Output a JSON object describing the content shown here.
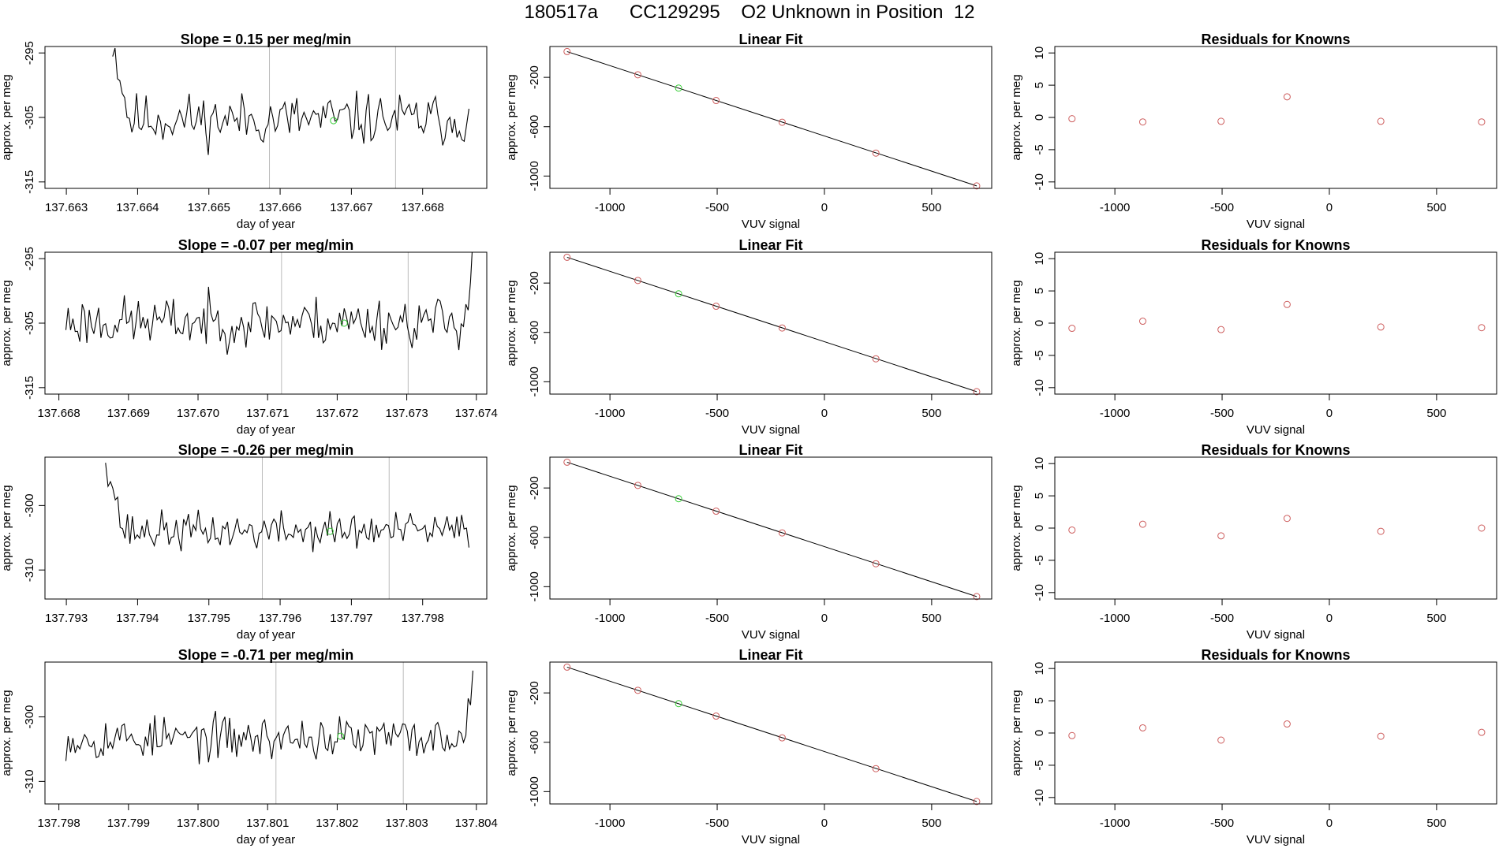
{
  "title": "180517a      CC129295    O2 Unknown in Position  12",
  "colors": {
    "line": "#000000",
    "known_point": "#cd5c5c",
    "unknown_point": "#33cc33",
    "ref_line": "#bbbbbb"
  },
  "chart_data": [
    {
      "type": "line",
      "panel": "time-series-1",
      "title": "Slope =  0.15  per meg/min",
      "xlabel": "day of year",
      "ylabel": "approx. per meg",
      "xlim": [
        137.6627,
        137.6689
      ],
      "ylim": [
        -316,
        -294
      ],
      "x_ticks": [
        137.663,
        137.664,
        137.665,
        137.666,
        137.667,
        137.668
      ],
      "x_tick_labels": [
        "137.663",
        "137.664",
        "137.665",
        "137.666",
        "137.667",
        "137.668"
      ],
      "y_ticks": [
        -295,
        -305,
        -315
      ],
      "y_tick_labels": [
        "-295",
        "-305",
        "-315"
      ],
      "vlines": [
        137.66585,
        137.66762
      ],
      "trace_start": 137.66365,
      "trace_end": 137.66865,
      "n_points": 150,
      "trace_base": -305.3,
      "trace_noise": 3.1,
      "spike_start": -293,
      "spike_len": 0.00023,
      "spike_end": null,
      "unknown_point": {
        "x": 137.66675,
        "y": -305.5
      },
      "seed": 11
    },
    {
      "type": "scatter",
      "panel": "linear-fit-1",
      "title": "Linear Fit",
      "xlabel": "VUV signal",
      "ylabel": "approx. per meg",
      "xlim": [
        -1280,
        780
      ],
      "ylim": [
        -1100,
        50
      ],
      "x_ticks": [
        -1000,
        -500,
        0,
        500
      ],
      "x_tick_labels": [
        "-1000",
        "-500",
        "0",
        "500"
      ],
      "y_ticks": [
        -200,
        -600,
        -1000
      ],
      "y_tick_labels": [
        "-200",
        "-600",
        "-1000"
      ],
      "fit_line": {
        "x": [
          -1200,
          710
        ],
        "y": [
          9,
          -1080
        ]
      },
      "knowns": {
        "x": [
          -1200,
          -870,
          -505,
          -197,
          240,
          710
        ],
        "y": [
          9,
          -179,
          -388,
          -564,
          -814,
          -1080
        ]
      },
      "unknown": {
        "x": -680,
        "y": -287
      }
    },
    {
      "type": "scatter",
      "panel": "residuals-1",
      "title": "Residuals for Knowns",
      "xlabel": "VUV signal",
      "ylabel": "approx. per meg",
      "xlim": [
        -1280,
        780
      ],
      "ylim": [
        -11,
        11
      ],
      "x_ticks": [
        -1000,
        -500,
        0,
        500
      ],
      "x_tick_labels": [
        "-1000",
        "-500",
        "0",
        "500"
      ],
      "y_ticks": [
        10,
        5,
        0,
        -5,
        -10
      ],
      "y_tick_labels": [
        "10",
        "5",
        "0",
        "-5",
        "-10"
      ],
      "residuals": {
        "x": [
          -1200,
          -870,
          -505,
          -197,
          240,
          710
        ],
        "y": [
          -0.2,
          -0.7,
          -0.6,
          3.2,
          -0.6,
          -0.7
        ]
      }
    },
    {
      "type": "line",
      "panel": "time-series-2",
      "title": "Slope =  -0.07  per meg/min",
      "xlabel": "day of year",
      "ylabel": "approx. per meg",
      "xlim": [
        137.6678,
        137.67415
      ],
      "ylim": [
        -316,
        -294
      ],
      "x_ticks": [
        137.668,
        137.669,
        137.67,
        137.671,
        137.672,
        137.673,
        137.674
      ],
      "x_tick_labels": [
        "137.668",
        "137.669",
        "137.670",
        "137.671",
        "137.672",
        "137.673",
        "137.674"
      ],
      "y_ticks": [
        -295,
        -305,
        -315
      ],
      "y_tick_labels": [
        "-295",
        "-305",
        "-315"
      ],
      "vlines": [
        137.6712,
        137.67302
      ],
      "trace_start": 137.6681,
      "trace_end": 137.67395,
      "n_points": 175,
      "trace_base": -304.8,
      "trace_noise": 3.0,
      "spike_start": null,
      "spike_len": 0.00018,
      "spike_end": -293,
      "unknown_point": {
        "x": 137.6721,
        "y": -305.0
      },
      "seed": 23
    },
    {
      "type": "scatter",
      "panel": "linear-fit-2",
      "title": "Linear Fit",
      "xlabel": "VUV signal",
      "ylabel": "approx. per meg",
      "xlim": [
        -1280,
        780
      ],
      "ylim": [
        -1100,
        50
      ],
      "x_ticks": [
        -1000,
        -500,
        0,
        500
      ],
      "x_tick_labels": [
        "-1000",
        "-500",
        "0",
        "500"
      ],
      "y_ticks": [
        -200,
        -600,
        -1000
      ],
      "y_tick_labels": [
        "-200",
        "-600",
        "-1000"
      ],
      "fit_line": {
        "x": [
          -1200,
          710
        ],
        "y": [
          9,
          -1080
        ]
      },
      "knowns": {
        "x": [
          -1200,
          -870,
          -505,
          -197,
          240,
          710
        ],
        "y": [
          9,
          -179,
          -388,
          -564,
          -814,
          -1080
        ]
      },
      "unknown": {
        "x": -680,
        "y": -287
      }
    },
    {
      "type": "scatter",
      "panel": "residuals-2",
      "title": "Residuals for Knowns",
      "xlabel": "VUV signal",
      "ylabel": "approx. per meg",
      "xlim": [
        -1280,
        780
      ],
      "ylim": [
        -11,
        11
      ],
      "x_ticks": [
        -1000,
        -500,
        0,
        500
      ],
      "x_tick_labels": [
        "-1000",
        "-500",
        "0",
        "500"
      ],
      "y_ticks": [
        10,
        5,
        0,
        -5,
        -10
      ],
      "y_tick_labels": [
        "10",
        "5",
        "0",
        "-5",
        "-10"
      ],
      "residuals": {
        "x": [
          -1200,
          -870,
          -505,
          -197,
          240,
          710
        ],
        "y": [
          -0.8,
          0.3,
          -1.0,
          2.9,
          -0.6,
          -0.7
        ]
      }
    },
    {
      "type": "line",
      "panel": "time-series-3",
      "title": "Slope =  -0.26  per meg/min",
      "xlabel": "day of year",
      "ylabel": "approx. per meg",
      "xlim": [
        137.7927,
        137.7989
      ],
      "ylim": [
        -314.5,
        -292.5
      ],
      "x_ticks": [
        137.793,
        137.794,
        137.795,
        137.796,
        137.797,
        137.798
      ],
      "x_tick_labels": [
        "137.793",
        "137.794",
        "137.795",
        "137.796",
        "137.797",
        "137.798"
      ],
      "y_ticks": [
        -300,
        -310
      ],
      "y_tick_labels": [
        "-300",
        "-310"
      ],
      "vlines": [
        137.79575,
        137.79753
      ],
      "trace_start": 137.79355,
      "trace_end": 137.79865,
      "n_points": 150,
      "trace_base": -304.0,
      "trace_noise": 2.3,
      "spike_start": -292,
      "spike_len": 0.00025,
      "spike_end": null,
      "unknown_point": {
        "x": 137.7967,
        "y": -304.0
      },
      "seed": 37
    },
    {
      "type": "scatter",
      "panel": "linear-fit-3",
      "title": "Linear Fit",
      "xlabel": "VUV signal",
      "ylabel": "approx. per meg",
      "xlim": [
        -1280,
        780
      ],
      "ylim": [
        -1100,
        50
      ],
      "x_ticks": [
        -1000,
        -500,
        0,
        500
      ],
      "x_tick_labels": [
        "-1000",
        "-500",
        "0",
        "500"
      ],
      "y_ticks": [
        -200,
        -600,
        -1000
      ],
      "y_tick_labels": [
        "-200",
        "-600",
        "-1000"
      ],
      "fit_line": {
        "x": [
          -1200,
          710
        ],
        "y": [
          9,
          -1080
        ]
      },
      "knowns": {
        "x": [
          -1200,
          -870,
          -505,
          -197,
          240,
          710
        ],
        "y": [
          9,
          -179,
          -388,
          -564,
          -814,
          -1080
        ]
      },
      "unknown": {
        "x": -680,
        "y": -287
      }
    },
    {
      "type": "scatter",
      "panel": "residuals-3",
      "title": "Residuals for Knowns",
      "xlabel": "VUV signal",
      "ylabel": "approx. per meg",
      "xlim": [
        -1280,
        780
      ],
      "ylim": [
        -11,
        11
      ],
      "x_ticks": [
        -1000,
        -500,
        0,
        500
      ],
      "x_tick_labels": [
        "-1000",
        "-500",
        "0",
        "500"
      ],
      "y_ticks": [
        10,
        5,
        0,
        -5,
        -10
      ],
      "y_tick_labels": [
        "10",
        "5",
        "0",
        "-5",
        "-10"
      ],
      "residuals": {
        "x": [
          -1200,
          -870,
          -505,
          -197,
          240,
          710
        ],
        "y": [
          -0.3,
          0.6,
          -1.2,
          1.5,
          -0.5,
          0.0
        ]
      }
    },
    {
      "type": "line",
      "panel": "time-series-4",
      "title": "Slope =  -0.71  per meg/min",
      "xlabel": "day of year",
      "ylabel": "approx. per meg",
      "xlim": [
        137.7978,
        137.80415
      ],
      "ylim": [
        -313.5,
        -291.5
      ],
      "x_ticks": [
        137.798,
        137.799,
        137.8,
        137.801,
        137.802,
        137.803,
        137.804
      ],
      "x_tick_labels": [
        "137.798",
        "137.799",
        "137.800",
        "137.801",
        "137.802",
        "137.803",
        "137.804"
      ],
      "y_ticks": [
        -300,
        -310
      ],
      "y_tick_labels": [
        "-300",
        "-310"
      ],
      "vlines": [
        137.80112,
        137.80295
      ],
      "trace_start": 137.7981,
      "trace_end": 137.80395,
      "n_points": 175,
      "trace_base": -303.3,
      "trace_noise": 2.6,
      "spike_start": null,
      "spike_len": 0.00015,
      "spike_end": -291,
      "unknown_point": {
        "x": 137.80205,
        "y": -303.0
      },
      "seed": 53
    },
    {
      "type": "scatter",
      "panel": "linear-fit-4",
      "title": "Linear Fit",
      "xlabel": "VUV signal",
      "ylabel": "approx. per meg",
      "xlim": [
        -1280,
        780
      ],
      "ylim": [
        -1100,
        50
      ],
      "x_ticks": [
        -1000,
        -500,
        0,
        500
      ],
      "x_tick_labels": [
        "-1000",
        "-500",
        "0",
        "500"
      ],
      "y_ticks": [
        -200,
        -600,
        -1000
      ],
      "y_tick_labels": [
        "-200",
        "-600",
        "-1000"
      ],
      "fit_line": {
        "x": [
          -1200,
          710
        ],
        "y": [
          9,
          -1080
        ]
      },
      "knowns": {
        "x": [
          -1200,
          -870,
          -505,
          -197,
          240,
          710
        ],
        "y": [
          9,
          -179,
          -388,
          -564,
          -814,
          -1080
        ]
      },
      "unknown": {
        "x": -680,
        "y": -287
      }
    },
    {
      "type": "scatter",
      "panel": "residuals-4",
      "title": "Residuals for Knowns",
      "xlabel": "VUV signal",
      "ylabel": "approx. per meg",
      "xlim": [
        -1280,
        780
      ],
      "ylim": [
        -11,
        11
      ],
      "x_ticks": [
        -1000,
        -500,
        0,
        500
      ],
      "x_tick_labels": [
        "-1000",
        "-500",
        "0",
        "500"
      ],
      "y_ticks": [
        10,
        5,
        0,
        -5,
        -10
      ],
      "y_tick_labels": [
        "10",
        "5",
        "0",
        "-5",
        "-10"
      ],
      "residuals": {
        "x": [
          -1200,
          -870,
          -505,
          -197,
          240,
          710
        ],
        "y": [
          -0.4,
          0.8,
          -1.1,
          1.4,
          -0.5,
          0.1
        ]
      }
    }
  ]
}
